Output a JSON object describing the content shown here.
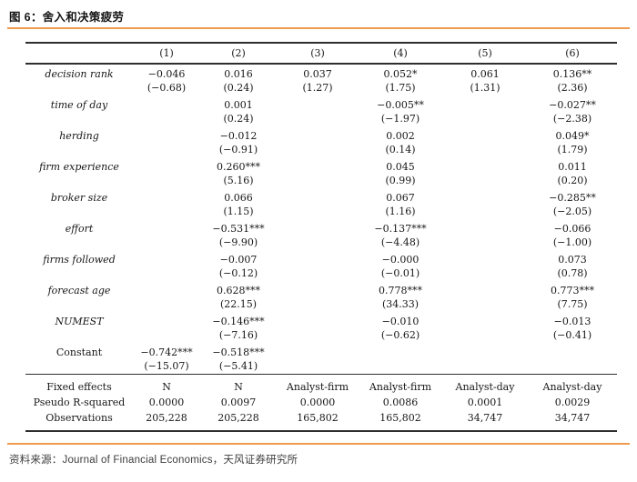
{
  "title": "图 6：舍入和决策疲劳",
  "source": {
    "label": "资料来源：",
    "text": "Journal of Financial Economics，天风证券研究所"
  },
  "colors": {
    "accent": "#ef9b4f",
    "rule": "#2e2e2e",
    "text": "#171717"
  },
  "table": {
    "columns": [
      "(1)",
      "(2)",
      "(3)",
      "(4)",
      "(5)",
      "(6)"
    ],
    "rows": [
      {
        "label": "decision rank",
        "italic": true,
        "coef": [
          "−0.046",
          "0.016",
          "0.037",
          "0.052*",
          "0.061",
          "0.136**"
        ],
        "tstat": [
          "(−0.68)",
          "(0.24)",
          "(1.27)",
          "(1.75)",
          "(1.31)",
          "(2.36)"
        ]
      },
      {
        "label": "time of day",
        "italic": true,
        "coef": [
          "",
          "0.001",
          "",
          "−0.005**",
          "",
          "−0.027**"
        ],
        "tstat": [
          "",
          "(0.24)",
          "",
          "(−1.97)",
          "",
          "(−2.38)"
        ]
      },
      {
        "label": "herding",
        "italic": true,
        "coef": [
          "",
          "−0.012",
          "",
          "0.002",
          "",
          "0.049*"
        ],
        "tstat": [
          "",
          "(−0.91)",
          "",
          "(0.14)",
          "",
          "(1.79)"
        ]
      },
      {
        "label": "firm experience",
        "italic": true,
        "coef": [
          "",
          "0.260***",
          "",
          "0.045",
          "",
          "0.011"
        ],
        "tstat": [
          "",
          "(5.16)",
          "",
          "(0.99)",
          "",
          "(0.20)"
        ]
      },
      {
        "label": "broker size",
        "italic": true,
        "coef": [
          "",
          "0.066",
          "",
          "0.067",
          "",
          "−0.285**"
        ],
        "tstat": [
          "",
          "(1.15)",
          "",
          "(1.16)",
          "",
          "(−2.05)"
        ]
      },
      {
        "label": "effort",
        "italic": true,
        "coef": [
          "",
          "−0.531***",
          "",
          "−0.137***",
          "",
          "−0.066"
        ],
        "tstat": [
          "",
          "(−9.90)",
          "",
          "(−4.48)",
          "",
          "(−1.00)"
        ]
      },
      {
        "label": "firms followed",
        "italic": true,
        "coef": [
          "",
          "−0.007",
          "",
          "−0.000",
          "",
          "0.073"
        ],
        "tstat": [
          "",
          "(−0.12)",
          "",
          "(−0.01)",
          "",
          "(0.78)"
        ]
      },
      {
        "label": "forecast age",
        "italic": true,
        "coef": [
          "",
          "0.628***",
          "",
          "0.778***",
          "",
          "0.773***"
        ],
        "tstat": [
          "",
          "(22.15)",
          "",
          "(34.33)",
          "",
          "(7.75)"
        ]
      },
      {
        "label": "NUMEST",
        "italic": true,
        "coef": [
          "",
          "−0.146***",
          "",
          "−0.010",
          "",
          "−0.013"
        ],
        "tstat": [
          "",
          "(−7.16)",
          "",
          "(−0.62)",
          "",
          "(−0.41)"
        ]
      },
      {
        "label": "Constant",
        "italic": false,
        "coef": [
          "−0.742***",
          "−0.518***",
          "",
          "",
          "",
          ""
        ],
        "tstat": [
          "(−15.07)",
          "(−5.41)",
          "",
          "",
          "",
          ""
        ]
      }
    ],
    "footer_rows": [
      {
        "label": "Fixed effects",
        "values": [
          "N",
          "N",
          "Analyst-firm",
          "Analyst-firm",
          "Analyst-day",
          "Analyst-day"
        ]
      },
      {
        "label": "Pseudo R-squared",
        "values": [
          "0.0000",
          "0.0097",
          "0.0000",
          "0.0086",
          "0.0001",
          "0.0029"
        ]
      },
      {
        "label": "Observations",
        "values": [
          "205,228",
          "205,228",
          "165,802",
          "165,802",
          "34,747",
          "34,747"
        ]
      }
    ]
  }
}
